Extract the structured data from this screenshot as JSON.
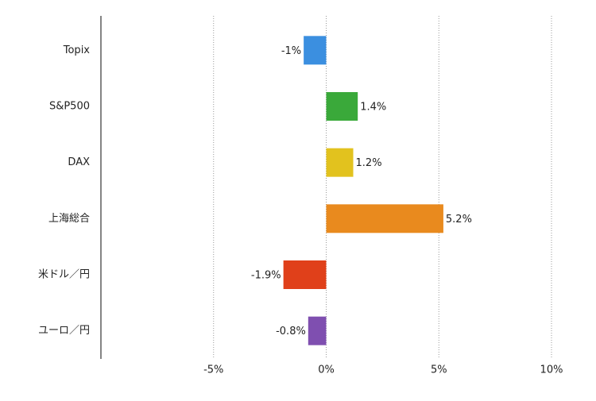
{
  "chart_data": {
    "type": "barh",
    "categories": [
      "Topix",
      "S&P500",
      "DAX",
      "上海総合",
      "米ドル／円",
      "ユーロ／円"
    ],
    "values": [
      -1,
      1.4,
      1.2,
      5.2,
      -1.9,
      -0.8
    ],
    "value_labels": [
      "-1%",
      "1.4%",
      "1.2%",
      "5.2%",
      "-1.9%",
      "-0.8%"
    ],
    "colors": [
      "#3b8fe0",
      "#3aa93a",
      "#e2c21e",
      "#e98a1e",
      "#e0401a",
      "#7f4fb0"
    ],
    "xlim": [
      -10,
      10
    ],
    "xticks": [
      {
        "value": -5,
        "label": "-5%"
      },
      {
        "value": 0,
        "label": "0%"
      },
      {
        "value": 5,
        "label": "5%"
      },
      {
        "value": 10,
        "label": "10%"
      }
    ],
    "grid": true
  }
}
